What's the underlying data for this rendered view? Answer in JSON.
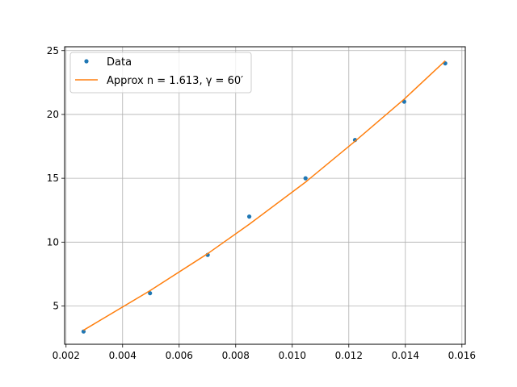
{
  "chart_data": {
    "type": "scatter",
    "title": "",
    "xlabel": "",
    "ylabel": "",
    "xlim": [
      0.00195,
      0.01612
    ],
    "ylim": [
      2.0,
      25.3
    ],
    "grid": true,
    "legend_position": "top-left",
    "x_ticks": [
      "0.002",
      "0.004",
      "0.006",
      "0.008",
      "0.010",
      "0.012",
      "0.014",
      "0.016"
    ],
    "x_tick_values": [
      0.002,
      0.004,
      0.006,
      0.008,
      0.01,
      0.012,
      0.014,
      0.016
    ],
    "y_ticks": [
      "5",
      "10",
      "15",
      "20",
      "25"
    ],
    "y_tick_values": [
      5,
      10,
      15,
      20,
      25
    ],
    "series": [
      {
        "name": "Data",
        "kind": "points",
        "color": "#1f77b4",
        "x": [
          0.00262,
          0.00497,
          0.00701,
          0.00848,
          0.01047,
          0.01222,
          0.01396,
          0.01541
        ],
        "y": [
          3,
          6,
          9,
          12,
          15,
          18,
          21,
          24
        ]
      },
      {
        "name": "Approx n = 1.613, γ = 60′",
        "kind": "line",
        "color": "#ff7f0e",
        "x": [
          0.00262,
          0.00497,
          0.00701,
          0.00848,
          0.01047,
          0.01222,
          0.01396,
          0.01541
        ],
        "y": [
          3.1,
          6.2,
          9.1,
          11.4,
          14.7,
          17.9,
          21.2,
          24.2
        ]
      }
    ]
  }
}
